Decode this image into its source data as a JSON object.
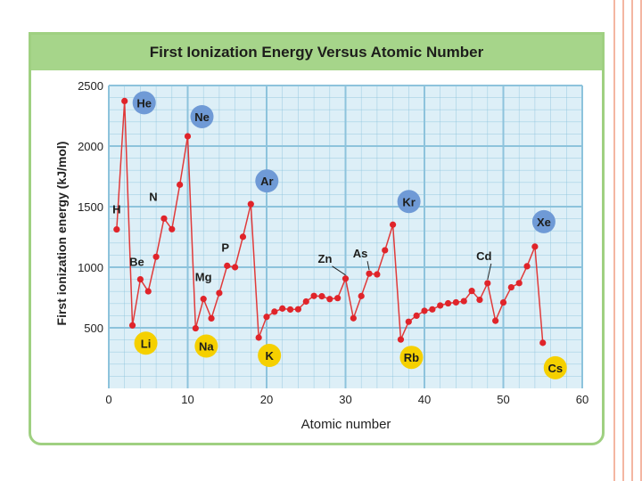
{
  "colors": {
    "frame": "#9fd081",
    "plot_bg": "#ddeff7",
    "grid": "#8dc3dc",
    "line": "#e03a3a",
    "point": "#e0242a",
    "noble_bubble": "#6f9ad6",
    "alkali_bubble": "#f5d000",
    "page_stripes": "#f4b6a2"
  },
  "chart_data": {
    "type": "line",
    "title": "First Ionization Energy Versus Atomic Number",
    "xlabel": "Atomic number",
    "ylabel": "First ionization energy (kJ/mol)",
    "xlim": [
      0,
      60
    ],
    "ylim": [
      0,
      2500
    ],
    "xticks": [
      "0",
      "10",
      "20",
      "30",
      "40",
      "50",
      "60"
    ],
    "yticks": [
      "500",
      "1000",
      "1500",
      "2000",
      "2500"
    ],
    "grid": true,
    "series": [
      {
        "name": "First ionization energy",
        "x": [
          1,
          2,
          3,
          4,
          5,
          6,
          7,
          8,
          9,
          10,
          11,
          12,
          13,
          14,
          15,
          16,
          17,
          18,
          19,
          20,
          21,
          22,
          23,
          24,
          25,
          26,
          27,
          28,
          29,
          30,
          31,
          32,
          33,
          34,
          35,
          36,
          37,
          38,
          39,
          40,
          41,
          42,
          43,
          44,
          45,
          46,
          47,
          48,
          49,
          50,
          51,
          52,
          53,
          54,
          55
        ],
        "values": [
          1312,
          2372,
          520,
          900,
          801,
          1086,
          1402,
          1314,
          1681,
          2081,
          496,
          738,
          578,
          787,
          1012,
          1000,
          1251,
          1521,
          419,
          590,
          633,
          659,
          651,
          653,
          717,
          763,
          760,
          737,
          745,
          906,
          579,
          762,
          947,
          941,
          1140,
          1351,
          403,
          550,
          600,
          640,
          652,
          684,
          702,
          710,
          720,
          804,
          731,
          868,
          558,
          709,
          834,
          869,
          1008,
          1170,
          376
        ]
      }
    ],
    "element_labels": [
      {
        "symbol": "H",
        "x": 1,
        "style": "plain"
      },
      {
        "symbol": "He",
        "x": 2,
        "style": "noble"
      },
      {
        "symbol": "Li",
        "x": 3,
        "style": "alkali"
      },
      {
        "symbol": "Be",
        "x": 4,
        "style": "plain"
      },
      {
        "symbol": "N",
        "x": 7,
        "style": "plain"
      },
      {
        "symbol": "Ne",
        "x": 10,
        "style": "noble"
      },
      {
        "symbol": "Na",
        "x": 11,
        "style": "alkali"
      },
      {
        "symbol": "Mg",
        "x": 12,
        "style": "plain"
      },
      {
        "symbol": "P",
        "x": 15,
        "style": "plain"
      },
      {
        "symbol": "Ar",
        "x": 18,
        "style": "noble"
      },
      {
        "symbol": "K",
        "x": 19,
        "style": "alkali"
      },
      {
        "symbol": "Zn",
        "x": 30,
        "style": "plain"
      },
      {
        "symbol": "As",
        "x": 33,
        "style": "plain"
      },
      {
        "symbol": "Kr",
        "x": 36,
        "style": "noble"
      },
      {
        "symbol": "Rb",
        "x": 37,
        "style": "alkali"
      },
      {
        "symbol": "Cd",
        "x": 48,
        "style": "plain"
      },
      {
        "symbol": "Xe",
        "x": 54,
        "style": "noble"
      },
      {
        "symbol": "Cs",
        "x": 55,
        "style": "alkali"
      }
    ]
  }
}
